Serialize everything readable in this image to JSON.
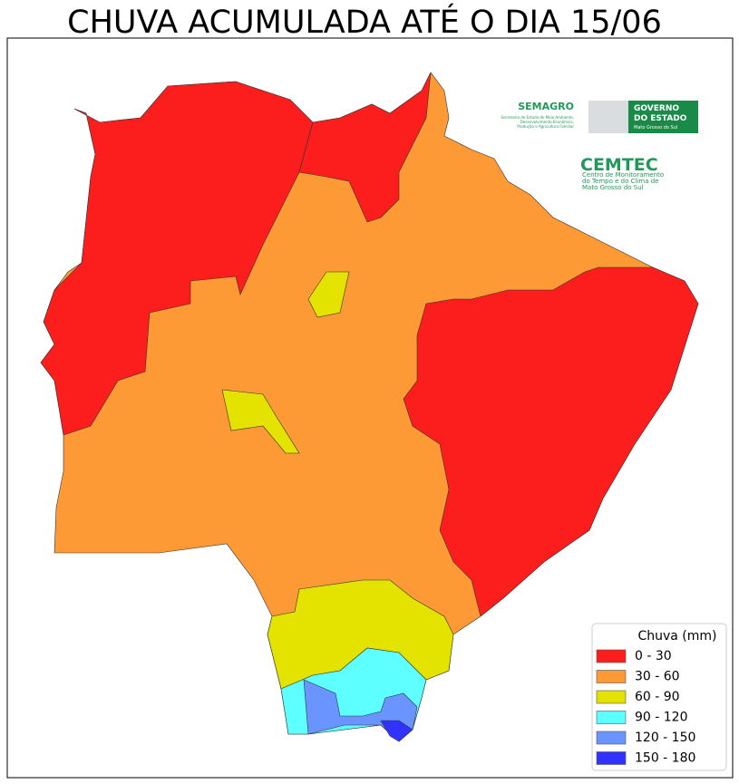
{
  "title": "CHUVA ACUMULADA ATÉ O DIA 15/06",
  "logos": {
    "semagro": "SEMAGRO",
    "semagro_subtitle": [
      "Secretaria de Estado de Meio Ambiente,",
      "Desenvolvimento Econômico,",
      "Produção e Agricultura Familiar"
    ],
    "governo": [
      "GOVERNO",
      "DO ESTADO"
    ],
    "governo_subtitle": "Mato Grosso do Sul",
    "cemtec": "CEMTEC",
    "cemtec_subtitle": [
      "Centro de Monitoramento",
      "do Tempo e do Clima de",
      "Mato Grosso do Sul"
    ]
  },
  "legend": {
    "title": "Chuva (mm)",
    "items": [
      {
        "label": "0 - 30",
        "color": "#fc1d1d"
      },
      {
        "label": "30 - 60",
        "color": "#fd9a35"
      },
      {
        "label": "60 - 90",
        "color": "#e4e300"
      },
      {
        "label": "90 - 120",
        "color": "#5dffff"
      },
      {
        "label": "120 - 150",
        "color": "#6a94ff"
      },
      {
        "label": "150 - 180",
        "color": "#3232ff"
      }
    ]
  }
}
